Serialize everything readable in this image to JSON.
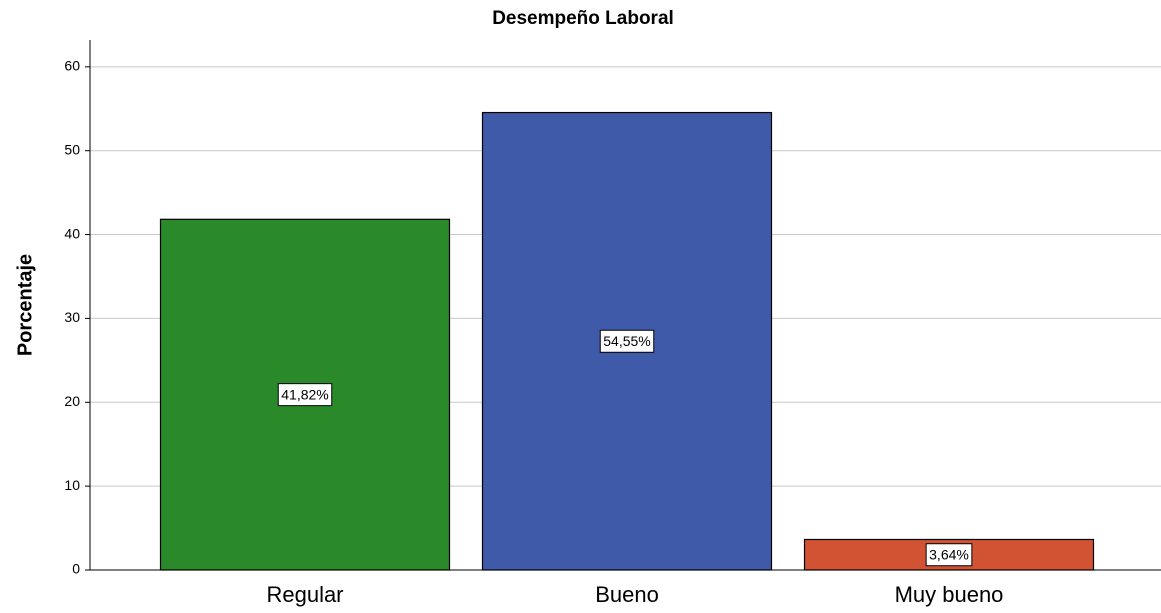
{
  "chart_data": {
    "type": "bar",
    "title": "Desempeño Laboral",
    "y_label": "Porcentaje",
    "categories": [
      "Regular",
      "Bueno",
      "Muy bueno"
    ],
    "values": [
      41.82,
      54.55,
      3.64
    ],
    "value_labels": [
      "41,82%",
      "54,55%",
      "3,64%"
    ],
    "colors": [
      "#2a8a2a",
      "#3f5aa8",
      "#d15333"
    ],
    "ylim": [
      0,
      63.2
    ],
    "yticks": [
      0,
      10,
      20,
      30,
      40,
      50,
      60
    ],
    "grid": true
  }
}
